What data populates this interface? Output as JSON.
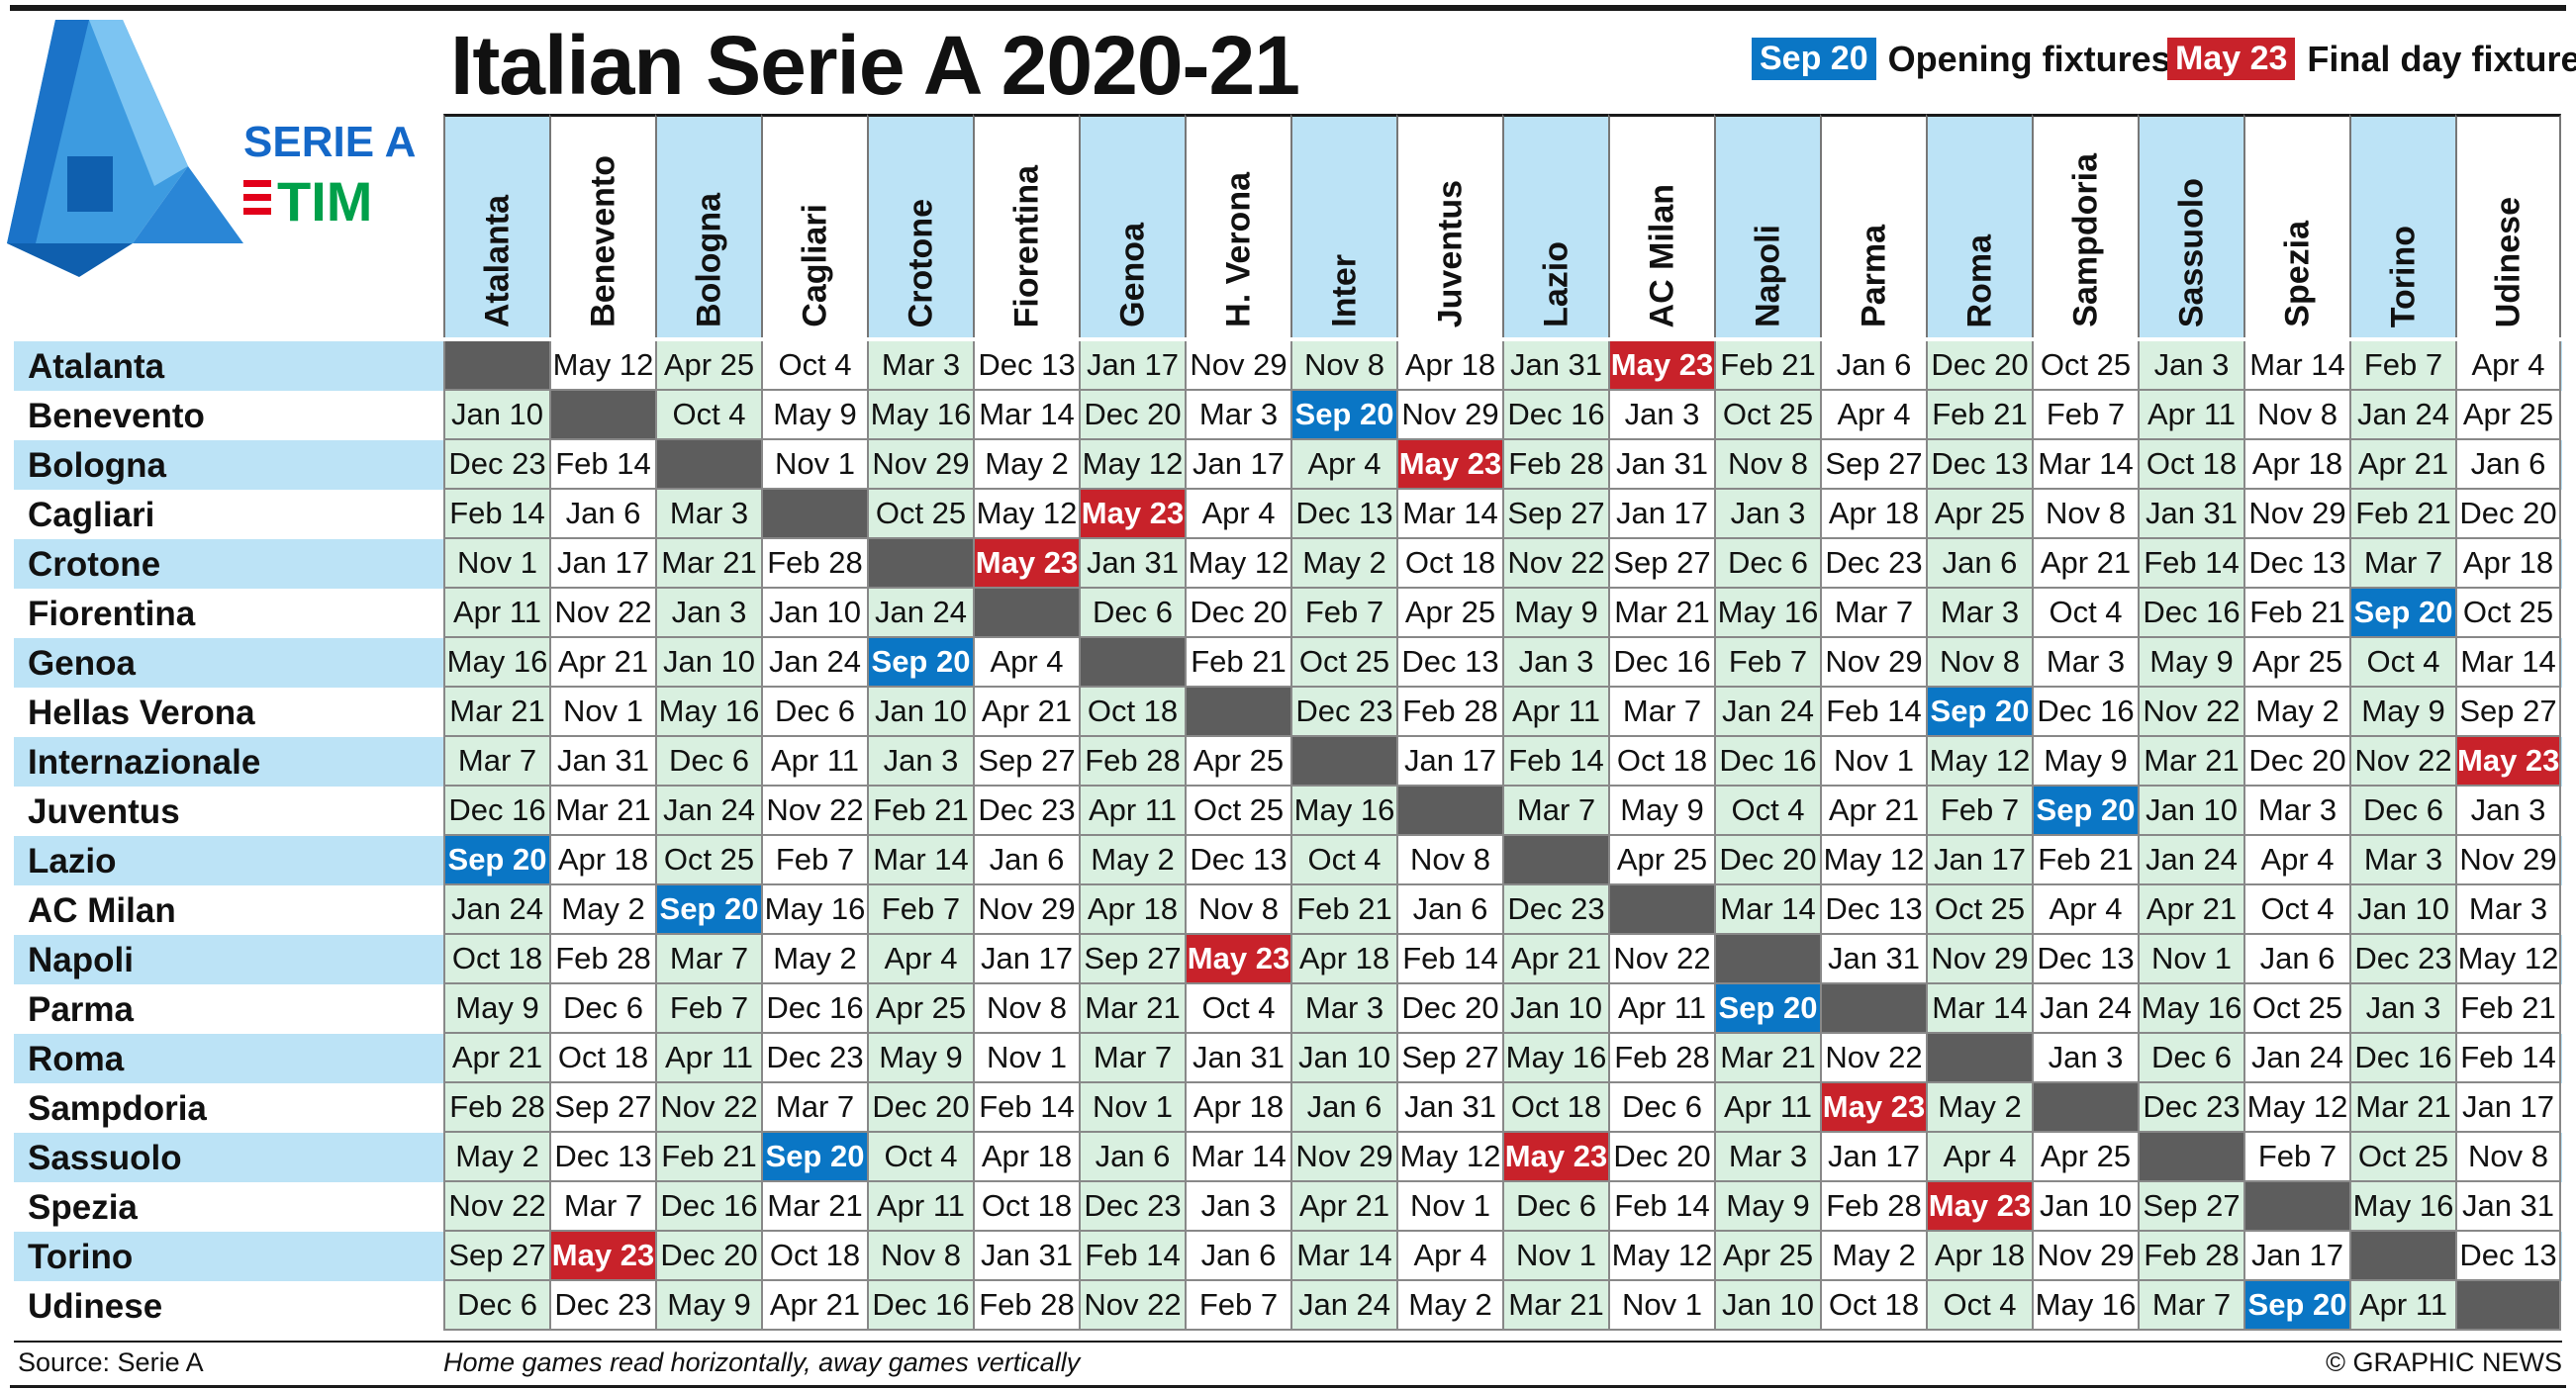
{
  "title": "Italian Serie A 2020-21",
  "logo": {
    "line1": "SERIE A",
    "line2": "TIM",
    "colors": {
      "blue": "#1468c8",
      "red": "#e2001a",
      "green": "#00a04a"
    }
  },
  "legend": {
    "opening": {
      "chip": "Sep 20",
      "label": "Opening fixtures",
      "color": "#0a76c5"
    },
    "final": {
      "chip": "May 23",
      "label": "Final day fixtures",
      "color": "#c8222a"
    }
  },
  "columns": [
    "Atalanta",
    "Benevento",
    "Bologna",
    "Cagliari",
    "Crotone",
    "Fiorentina",
    "Genoa",
    "H. Verona",
    "Inter",
    "Juventus",
    "Lazio",
    "AC Milan",
    "Napoli",
    "Parma",
    "Roma",
    "Sampdoria",
    "Sassuolo",
    "Spezia",
    "Torino",
    "Udinese"
  ],
  "rows": [
    {
      "team": "Atalanta",
      "cells": [
        "",
        "May 12",
        "Apr 25",
        "Oct  4",
        "Mar 3",
        "Dec 13",
        "Jan 17",
        "Nov 29",
        "Nov 8",
        "Apr 18",
        "Jan 31",
        "May 23",
        "Feb 21",
        "Jan 6",
        "Dec 20",
        "Oct 25",
        "Jan 3",
        "Mar 14",
        "Feb 7",
        "Apr 4"
      ]
    },
    {
      "team": "Benevento",
      "cells": [
        "Jan 10",
        "",
        "Oct  4",
        "May 9",
        "May 16",
        "Mar 14",
        "Dec 20",
        "Mar 3",
        "Sep 20",
        "Nov 29",
        "Dec 16",
        "Jan 3",
        "Oct 25",
        "Apr 4",
        "Feb 21",
        "Feb 7",
        "Apr 11",
        "Nov 8",
        "Jan 24",
        "Apr 25"
      ]
    },
    {
      "team": "Bologna",
      "cells": [
        "Dec 23",
        "Feb 14",
        "",
        "Nov 1",
        "Nov 29",
        "May 2",
        "May 12",
        "Jan 17",
        "Apr 4",
        "May 23",
        "Feb 28",
        "Jan 31",
        "Nov 8",
        "Sep 27",
        "Dec 13",
        "Mar 14",
        "Oct 18",
        "Apr 18",
        "Apr 21",
        "Jan 6"
      ]
    },
    {
      "team": "Cagliari",
      "cells": [
        "Feb 14",
        "Jan 6",
        "Mar 3",
        "",
        "Oct 25",
        "May 12",
        "May 23",
        "Apr 4",
        "Dec 13",
        "Mar 14",
        "Sep 27",
        "Jan 17",
        "Jan 3",
        "Apr 18",
        "Apr 25",
        "Nov 8",
        "Jan 31",
        "Nov 29",
        "Feb 21",
        "Dec 20"
      ]
    },
    {
      "team": "Crotone",
      "cells": [
        "Nov 1",
        "Jan 17",
        "Mar 21",
        "Feb 28",
        "",
        "May 23",
        "Jan 31",
        "May 12",
        "May 2",
        "Oct 18",
        "Nov 22",
        "Sep 27",
        "Dec 6",
        "Dec 23",
        "Jan 6",
        "Apr 21",
        "Feb 14",
        "Dec 13",
        "Mar 7",
        "Apr 18"
      ]
    },
    {
      "team": "Fiorentina",
      "cells": [
        "Apr 11",
        "Nov 22",
        "Jan 3",
        "Jan 10",
        "Jan 24",
        "",
        "Dec 6",
        "Dec 20",
        "Feb 7",
        "Apr 25",
        "May 9",
        "Mar 21",
        "May 16",
        "Mar 7",
        "Mar 3",
        "Oct  4",
        "Dec 16",
        "Feb 21",
        "Sep 20",
        "Oct 25"
      ]
    },
    {
      "team": "Genoa",
      "cells": [
        "May 16",
        "Apr 21",
        "Jan 10",
        "Jan 24",
        "Sep 20",
        "Apr 4",
        "",
        "Feb 21",
        "Oct 25",
        "Dec 13",
        "Jan 3",
        "Dec 16",
        "Feb 7",
        "Nov 29",
        "Nov 8",
        "Mar 3",
        "May 9",
        "Apr 25",
        "Oct  4",
        "Mar 14"
      ]
    },
    {
      "team": "Hellas Verona",
      "cells": [
        "Mar 21",
        "Nov 1",
        "May 16",
        "Dec 6",
        "Jan 10",
        "Apr 21",
        "Oct 18",
        "",
        "Dec 23",
        "Feb 28",
        "Apr 11",
        "Mar 7",
        "Jan 24",
        "Feb 14",
        "Sep 20",
        "Dec 16",
        "Nov 22",
        "May 2",
        "May 9",
        "Sep 27"
      ]
    },
    {
      "team": "Internazionale",
      "cells": [
        "Mar 7",
        "Jan 31",
        "Dec 6",
        "Apr 11",
        "Jan 3",
        "Sep 27",
        "Feb 28",
        "Apr 25",
        "",
        "Jan 17",
        "Feb 14",
        "Oct 18",
        "Dec 16",
        "Nov 1",
        "May 12",
        "May 9",
        "Mar 21",
        "Dec 20",
        "Nov 22",
        "May 23"
      ]
    },
    {
      "team": "Juventus",
      "cells": [
        "Dec 16",
        "Mar 21",
        "Jan 24",
        "Nov 22",
        "Feb 21",
        "Dec 23",
        "Apr 11",
        "Oct 25",
        "May 16",
        "",
        "Mar 7",
        "May 9",
        "Oct  4",
        "Apr 21",
        "Feb 7",
        "Sep 20",
        "Jan 10",
        "Mar 3",
        "Dec 6",
        "Jan 3"
      ]
    },
    {
      "team": "Lazio",
      "cells": [
        "Sep 20",
        "Apr 18",
        "Oct 25",
        "Feb 7",
        "Mar 14",
        "Jan 6",
        "May 2",
        "Dec 13",
        "Oct  4",
        "Nov 8",
        "",
        "Apr 25",
        "Dec 20",
        "May 12",
        "Jan 17",
        "Feb 21",
        "Jan 24",
        "Apr 4",
        "Mar 3",
        "Nov 29"
      ]
    },
    {
      "team": "AC Milan",
      "cells": [
        "Jan 24",
        "May 2",
        "Sep 20",
        "May 16",
        "Feb 7",
        "Nov 29",
        "Apr 18",
        "Nov 8",
        "Feb 21",
        "Jan 6",
        "Dec 23",
        "",
        "Mar 14",
        "Dec 13",
        "Oct 25",
        "Apr 4",
        "Apr 21",
        "Oct  4",
        "Jan 10",
        "Mar 3"
      ]
    },
    {
      "team": "Napoli",
      "cells": [
        "Oct 18",
        "Feb 28",
        "Mar 7",
        "May 2",
        "Apr 4",
        "Jan 17",
        "Sep 27",
        "May 23",
        "Apr 18",
        "Feb 14",
        "Apr 21",
        "Nov 22",
        "",
        "Jan 31",
        "Nov 29",
        "Dec 13",
        "Nov 1",
        "Jan 6",
        "Dec 23",
        "May 12"
      ]
    },
    {
      "team": "Parma",
      "cells": [
        "May 9",
        "Dec 6",
        "Feb 7",
        "Dec 16",
        "Apr 25",
        "Nov 8",
        "Mar 21",
        "Oct  4",
        "Mar 3",
        "Dec 20",
        "Jan 10",
        "Apr 11",
        "Sep 20",
        "",
        "Mar 14",
        "Jan 24",
        "May 16",
        "Oct 25",
        "Jan 3",
        "Feb 21"
      ]
    },
    {
      "team": "Roma",
      "cells": [
        "Apr 21",
        "Oct 18",
        "Apr 11",
        "Dec 23",
        "May 9",
        "Nov 1",
        "Mar 7",
        "Jan 31",
        "Jan 10",
        "Sep 27",
        "May 16",
        "Feb 28",
        "Mar 21",
        "Nov 22",
        "",
        "Jan 3",
        "Dec 6",
        "Jan 24",
        "Dec 16",
        "Feb 14"
      ]
    },
    {
      "team": "Sampdoria",
      "cells": [
        "Feb 28",
        "Sep 27",
        "Nov 22",
        "Mar 7",
        "Dec 20",
        "Feb 14",
        "Nov 1",
        "Apr 18",
        "Jan 6",
        "Jan 31",
        "Oct 18",
        "Dec 6",
        "Apr 11",
        "May 23",
        "May 2",
        "",
        "Dec 23",
        "May 12",
        "Mar 21",
        "Jan 17"
      ]
    },
    {
      "team": "Sassuolo",
      "cells": [
        "May 2",
        "Dec 13",
        "Feb 21",
        "Sep 20",
        "Oct  4",
        "Apr 18",
        "Jan 6",
        "Mar 14",
        "Nov 29",
        "May 12",
        "May 23",
        "Dec 20",
        "Mar 3",
        "Jan 17",
        "Apr 4",
        "Apr 25",
        "",
        "Feb 7",
        "Oct 25",
        "Nov 8"
      ]
    },
    {
      "team": "Spezia",
      "cells": [
        "Nov 22",
        "Mar 7",
        "Dec 16",
        "Mar 21",
        "Apr 11",
        "Oct 18",
        "Dec 23",
        "Jan 3",
        "Apr 21",
        "Nov 1",
        "Dec 6",
        "Feb 14",
        "May 9",
        "Feb 28",
        "May 23",
        "Jan 10",
        "Sep 27",
        "",
        "May 16",
        "Jan 31"
      ]
    },
    {
      "team": "Torino",
      "cells": [
        "Sep 27",
        "May 23",
        "Dec 20",
        "Oct 18",
        "Nov 8",
        "Jan 31",
        "Feb 14",
        "Jan 6",
        "Mar 14",
        "Apr 4",
        "Nov 1",
        "May 12",
        "Apr 25",
        "May 2",
        "Apr 18",
        "Nov 29",
        "Feb 28",
        "Jan 17",
        "",
        "Dec 13"
      ]
    },
    {
      "team": "Udinese",
      "cells": [
        "Dec 6",
        "Dec 23",
        "May 9",
        "Apr 21",
        "Dec 16",
        "Feb 28",
        "Nov 22",
        "Feb 7",
        "Jan 24",
        "May 2",
        "Mar 21",
        "Nov 1",
        "Jan 10",
        "Oct 18",
        "Oct  4",
        "May 16",
        "Mar 7",
        "Sep 20",
        "Apr 11",
        ""
      ]
    }
  ],
  "footer": {
    "source": "Source: Serie A",
    "note": "Home games read horizontally, away games vertically",
    "credit": "© GRAPHIC NEWS"
  }
}
